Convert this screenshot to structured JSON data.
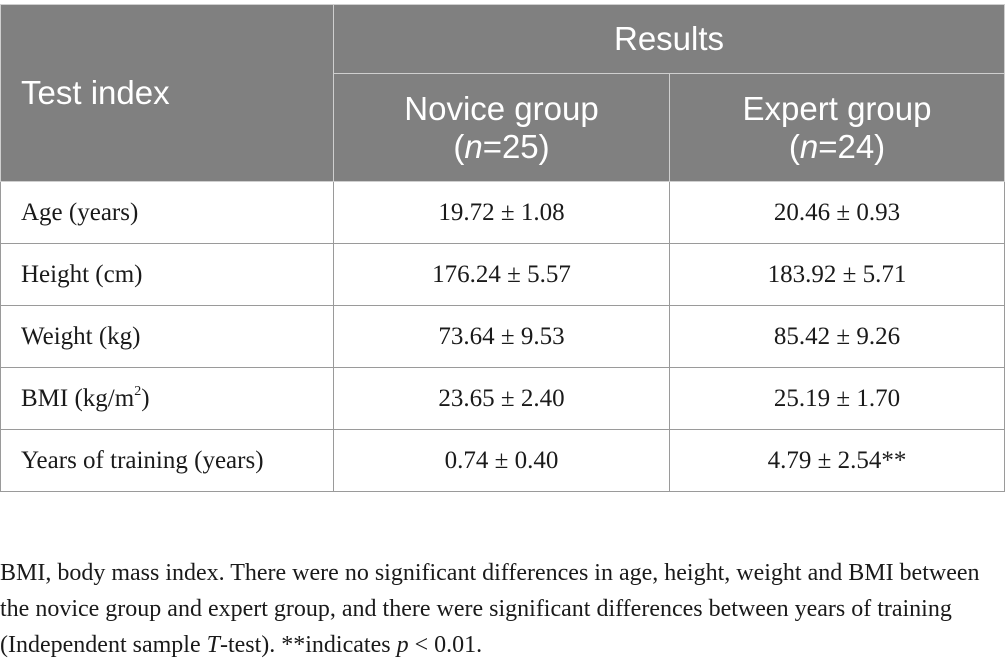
{
  "table": {
    "header": {
      "test_index": "Test index",
      "results": "Results",
      "groups": [
        {
          "name": "Novice group",
          "n_prefix": "(",
          "n_var": "n",
          "n_value": "=25)"
        },
        {
          "name": "Expert group",
          "n_prefix": "(",
          "n_var": "n",
          "n_value": "=24)"
        }
      ]
    },
    "rows": [
      {
        "label": "Age (years)",
        "novice": "19.72 ± 1.08",
        "expert": "20.46 ± 0.93"
      },
      {
        "label": "Height (cm)",
        "novice": "176.24 ± 5.57",
        "expert": "183.92 ± 5.71"
      },
      {
        "label": "Weight (kg)",
        "novice": "73.64 ± 9.53",
        "expert": "85.42 ± 9.26"
      },
      {
        "label_main": "BMI (kg/m",
        "label_sup": "2",
        "label_end": ")",
        "novice": "23.65 ± 2.40",
        "expert": "25.19 ± 1.70"
      },
      {
        "label": "Years of training (years)",
        "novice": "0.74 ± 0.40",
        "expert": "4.79 ± 2.54**"
      }
    ]
  },
  "footnote": {
    "part1": "BMI, body mass index. There were no significant differences in age, height, weight and BMI between the novice group and expert group, and there were significant differences between years of training (Independent sample ",
    "t_var": "T",
    "part2": "-test). **indicates ",
    "p_var": "p",
    "part3": " < 0.01."
  }
}
